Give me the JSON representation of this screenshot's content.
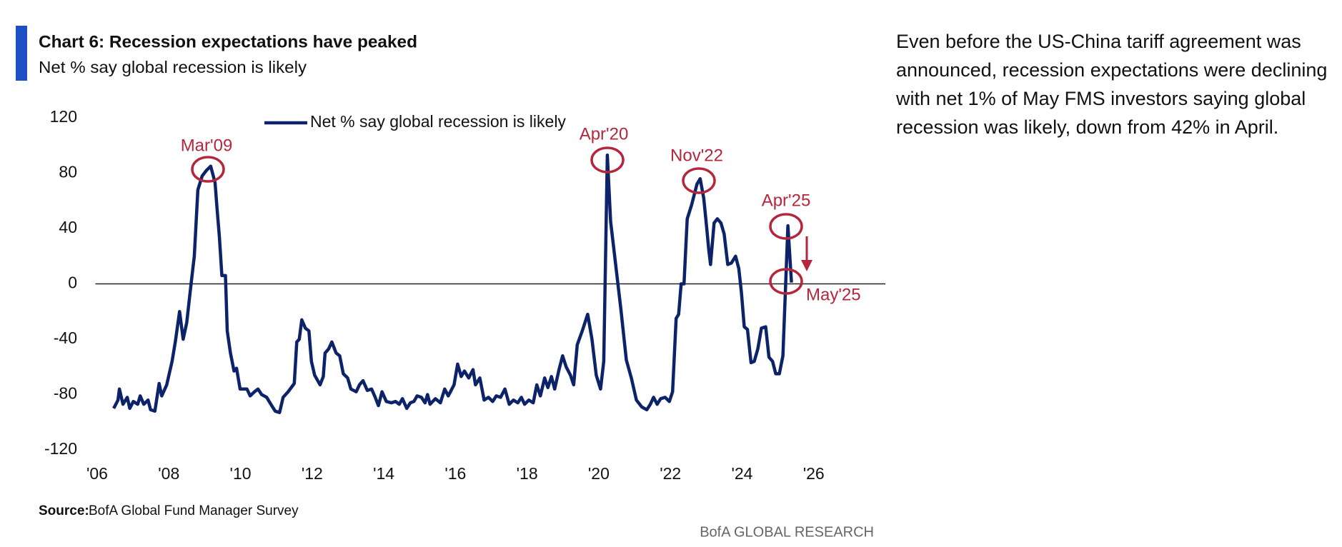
{
  "chart_data": {
    "type": "line",
    "title": "Chart 6: Recession expectations have peaked",
    "subtitle": "Net % say global recession is likely",
    "source_label": "Source:",
    "source": "BofA Global Fund Manager Survey",
    "brand": "BofA GLOBAL RESEARCH",
    "commentary": "Even before the US-China tariff agreement was announced, recession expectations were declining with net 1% of May FMS investors saying global recession was likely, down from 42% in April.",
    "legend": "upper-center",
    "annotations": [
      "Mar'09",
      "Apr'20",
      "Nov'22",
      "Apr'25",
      "May'25"
    ],
    "annotation_color": "#b5263d",
    "xlim": [
      2005.95,
      2028
    ],
    "xticks": [
      {
        "value": 2006,
        "label": "'06"
      },
      {
        "value": 2008,
        "label": "'08"
      },
      {
        "value": 2010,
        "label": "'10"
      },
      {
        "value": 2012,
        "label": "'12"
      },
      {
        "value": 2014,
        "label": "'14"
      },
      {
        "value": 2016,
        "label": "'16"
      },
      {
        "value": 2018,
        "label": "'18"
      },
      {
        "value": 2020,
        "label": "'20"
      },
      {
        "value": 2022,
        "label": "'22"
      },
      {
        "value": 2024,
        "label": "'24"
      },
      {
        "value": 2026,
        "label": "'26"
      }
    ],
    "ylim": [
      -120,
      120
    ],
    "yticks": [
      -120,
      -80,
      -40,
      0,
      40,
      80,
      120
    ],
    "x": [
      2006.46,
      2006.58,
      2006.62,
      2006.72,
      2006.84,
      2006.91,
      2007.01,
      2007.13,
      2007.2,
      2007.3,
      2007.42,
      2007.49,
      2007.61,
      2007.73,
      2007.8,
      2007.94,
      2008.09,
      2008.18,
      2008.3,
      2008.4,
      2008.5,
      2008.62,
      2008.71,
      2008.81,
      2008.93,
      2009.05,
      2009.17,
      2009.29,
      2009.34,
      2009.41,
      2009.48,
      2009.58,
      2009.63,
      2009.72,
      2009.82,
      2009.89,
      2009.99,
      2010.18,
      2010.27,
      2010.39,
      2010.49,
      2010.59,
      2010.73,
      2010.87,
      2010.97,
      2011.09,
      2011.19,
      2011.33,
      2011.5,
      2011.57,
      2011.64,
      2011.71,
      2011.81,
      2011.91,
      2011.98,
      2012.07,
      2012.22,
      2012.31,
      2012.36,
      2012.46,
      2012.55,
      2012.67,
      2012.77,
      2012.87,
      2012.99,
      2013.08,
      2013.23,
      2013.32,
      2013.42,
      2013.54,
      2013.66,
      2013.76,
      2013.85,
      2013.95,
      2014.07,
      2014.21,
      2014.33,
      2014.43,
      2014.52,
      2014.64,
      2014.74,
      2014.84,
      2014.93,
      2015.05,
      2015.15,
      2015.22,
      2015.29,
      2015.44,
      2015.58,
      2015.7,
      2015.8,
      2015.96,
      2016.06,
      2016.16,
      2016.25,
      2016.37,
      2016.49,
      2016.56,
      2016.68,
      2016.8,
      2016.92,
      2017.04,
      2017.14,
      2017.26,
      2017.38,
      2017.5,
      2017.62,
      2017.74,
      2017.84,
      2017.93,
      2018.05,
      2018.17,
      2018.27,
      2018.37,
      2018.49,
      2018.58,
      2018.68,
      2018.77,
      2018.89,
      2018.99,
      2019.09,
      2019.21,
      2019.3,
      2019.4,
      2019.54,
      2019.69,
      2019.81,
      2019.93,
      2020.05,
      2020.14,
      2020.24,
      2020.33,
      2020.48,
      2020.62,
      2020.77,
      2020.91,
      2021.05,
      2021.2,
      2021.34,
      2021.44,
      2021.53,
      2021.63,
      2021.73,
      2021.85,
      2021.97,
      2022.06,
      2022.16,
      2022.23,
      2022.3,
      2022.38,
      2022.47,
      2022.59,
      2022.74,
      2022.83,
      2022.93,
      2023.0,
      2023.07,
      2023.12,
      2023.22,
      2023.31,
      2023.41,
      2023.5,
      2023.6,
      2023.7,
      2023.82,
      2023.91,
      2023.98,
      2024.06,
      2024.15,
      2024.25,
      2024.34,
      2024.44,
      2024.54,
      2024.66,
      2024.75,
      2024.85,
      2024.94,
      2025.04,
      2025.14,
      2025.28,
      2025.38
    ],
    "series": [
      {
        "name": "Net % say global recession is likely",
        "color": "#0c2369",
        "values": [
          -90,
          -84,
          -76,
          -87,
          -82,
          -90,
          -85,
          -87,
          -81,
          -87,
          -84,
          -91,
          -92,
          -72,
          -81,
          -73,
          -56,
          -42,
          -20,
          -40,
          -28,
          0,
          20,
          68,
          78,
          82,
          85,
          73,
          56,
          34,
          6,
          6,
          -34,
          -50,
          -63,
          -61,
          -76,
          -76,
          -81,
          -78,
          -76,
          -80,
          -82,
          -88,
          -92,
          -93,
          -82,
          -78,
          -72,
          -42,
          -40,
          -26,
          -32,
          -34,
          -56,
          -66,
          -73,
          -67,
          -50,
          -47,
          -42,
          -50,
          -52,
          -65,
          -68,
          -76,
          -78,
          -73,
          -70,
          -77,
          -76,
          -82,
          -88,
          -78,
          -85,
          -86,
          -85,
          -87,
          -83,
          -90,
          -86,
          -85,
          -81,
          -82,
          -86,
          -80,
          -87,
          -83,
          -86,
          -76,
          -81,
          -73,
          -58,
          -67,
          -63,
          -68,
          -62,
          -73,
          -68,
          -84,
          -82,
          -85,
          -81,
          -82,
          -76,
          -87,
          -84,
          -86,
          -82,
          -87,
          -84,
          -86,
          -73,
          -81,
          -68,
          -75,
          -67,
          -76,
          -62,
          -52,
          -60,
          -66,
          -73,
          -44,
          -34,
          -22,
          -40,
          -66,
          -76,
          -56,
          93,
          45,
          12,
          -19,
          -55,
          -68,
          -84,
          -89,
          -91,
          -87,
          -82,
          -87,
          -83,
          -82,
          -85,
          -78,
          -25,
          -22,
          0,
          0,
          47,
          57,
          72,
          76,
          62,
          44,
          25,
          14,
          44,
          47,
          44,
          36,
          14,
          15,
          20,
          11,
          -6,
          -31,
          -33,
          -57,
          -56,
          -47,
          -32,
          -31,
          -53,
          -56,
          -65,
          -65,
          -52,
          42,
          1
        ]
      }
    ]
  }
}
